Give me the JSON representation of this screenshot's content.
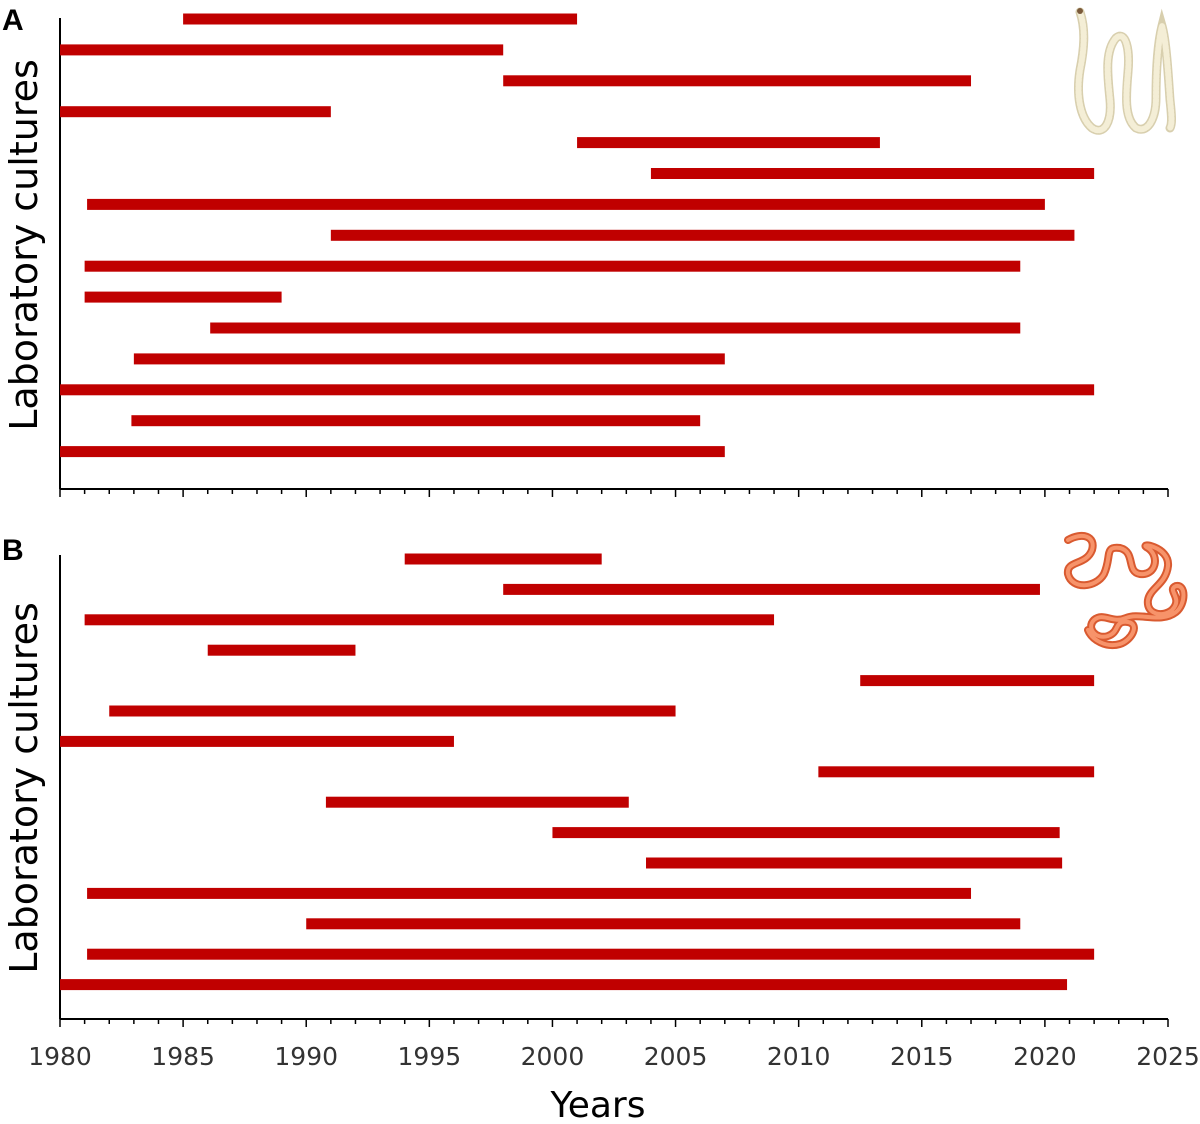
{
  "colors": {
    "bar": "#c00000",
    "axis": "#000000",
    "worm_a": "#efe6c8",
    "worm_b": "#f37a4c"
  },
  "icons": {
    "panel_a": "tapeworm-icon",
    "panel_b": "nematode-worm-icon"
  },
  "chart_data": [
    {
      "type": "bar",
      "orientation": "horizontal-range",
      "panel": "A",
      "ylabel": "Laboratory cultures",
      "xlim": [
        1980,
        2025
      ],
      "ranges": [
        [
          1985,
          2001
        ],
        [
          1980,
          1998
        ],
        [
          1998,
          2017
        ],
        [
          1980,
          1991
        ],
        [
          2001,
          2013.3
        ],
        [
          2004,
          2022
        ],
        [
          1981.1,
          2020
        ],
        [
          1991,
          2021.2
        ],
        [
          1981,
          2019
        ],
        [
          1981,
          1989
        ],
        [
          1986.1,
          2019
        ],
        [
          1983,
          2007
        ],
        [
          1980,
          2022
        ],
        [
          1982.9,
          2006
        ],
        [
          1980,
          2007
        ]
      ]
    },
    {
      "type": "bar",
      "orientation": "horizontal-range",
      "panel": "B",
      "ylabel": "Laboratory cultures",
      "xlabel": "Years",
      "xlim": [
        1980,
        2025
      ],
      "xticks": [
        "1980",
        "1985",
        "1990",
        "1995",
        "2000",
        "2005",
        "2010",
        "2015",
        "2020",
        "2025"
      ],
      "ranges": [
        [
          1994,
          2002
        ],
        [
          1998,
          2019.8
        ],
        [
          1981,
          2009
        ],
        [
          1986,
          1992
        ],
        [
          2012.5,
          2022
        ],
        [
          1982,
          2005
        ],
        [
          1980,
          1996
        ],
        [
          2010.8,
          2022
        ],
        [
          1990.8,
          2003.1
        ],
        [
          2000,
          2020.6
        ],
        [
          2003.8,
          2020.7
        ],
        [
          1981.1,
          2017
        ],
        [
          1990,
          2019
        ],
        [
          1981.1,
          2022
        ],
        [
          1980,
          2020.9
        ]
      ]
    }
  ]
}
